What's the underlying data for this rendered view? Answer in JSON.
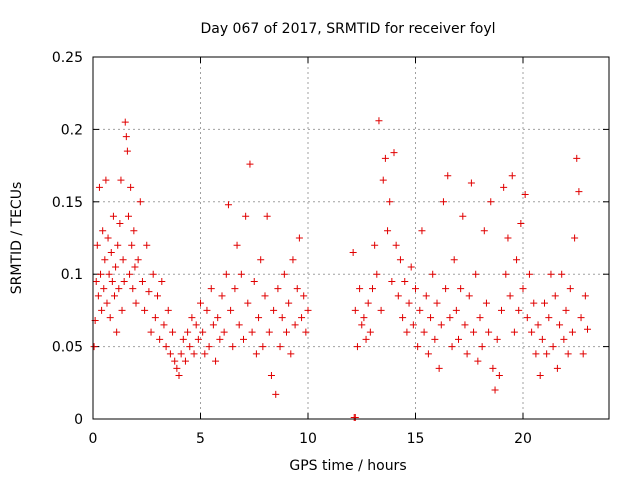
{
  "chart_data": {
    "type": "scatter",
    "title": "Day 067 of 2017, SRMTID for receiver foyl",
    "xlabel": "GPS time / hours",
    "ylabel": "SRMTID / TECUs",
    "xlim": [
      0,
      24
    ],
    "ylim": [
      0,
      0.25
    ],
    "x_ticks": [
      0,
      5,
      10,
      15,
      20
    ],
    "x_tick_labels": [
      "0",
      "5",
      "10",
      "15",
      "20"
    ],
    "y_ticks": [
      0,
      0.05,
      0.1,
      0.15,
      0.2,
      0.25
    ],
    "y_tick_labels": [
      "0",
      "0.05",
      "0.1",
      "0.15",
      "0.2",
      "0.25"
    ],
    "grid": true,
    "marker": "+",
    "color": "#e00000",
    "series": [
      {
        "points": [
          [
            0.05,
            0.05
          ],
          [
            0.1,
            0.068
          ],
          [
            0.15,
            0.095
          ],
          [
            0.2,
            0.12
          ],
          [
            0.25,
            0.085
          ],
          [
            0.3,
            0.16
          ],
          [
            0.35,
            0.1
          ],
          [
            0.4,
            0.075
          ],
          [
            0.45,
            0.13
          ],
          [
            0.5,
            0.09
          ],
          [
            0.55,
            0.11
          ],
          [
            0.6,
            0.165
          ],
          [
            0.65,
            0.08
          ],
          [
            0.7,
            0.125
          ],
          [
            0.75,
            0.1
          ],
          [
            0.8,
            0.07
          ],
          [
            0.85,
            0.115
          ],
          [
            0.9,
            0.095
          ],
          [
            0.95,
            0.14
          ],
          [
            1.0,
            0.085
          ],
          [
            1.05,
            0.105
          ],
          [
            1.1,
            0.06
          ],
          [
            1.15,
            0.12
          ],
          [
            1.2,
            0.09
          ],
          [
            1.25,
            0.135
          ],
          [
            1.3,
            0.165
          ],
          [
            1.35,
            0.075
          ],
          [
            1.4,
            0.11
          ],
          [
            1.45,
            0.095
          ],
          [
            1.5,
            0.205
          ],
          [
            1.55,
            0.195
          ],
          [
            1.6,
            0.185
          ],
          [
            1.65,
            0.14
          ],
          [
            1.7,
            0.1
          ],
          [
            1.75,
            0.16
          ],
          [
            1.8,
            0.12
          ],
          [
            1.85,
            0.09
          ],
          [
            1.9,
            0.13
          ],
          [
            1.95,
            0.105
          ],
          [
            2.0,
            0.08
          ],
          [
            2.1,
            0.11
          ],
          [
            2.2,
            0.15
          ],
          [
            2.3,
            0.095
          ],
          [
            2.4,
            0.075
          ],
          [
            2.5,
            0.12
          ],
          [
            2.6,
            0.088
          ],
          [
            2.7,
            0.06
          ],
          [
            2.8,
            0.1
          ],
          [
            2.9,
            0.07
          ],
          [
            3.0,
            0.085
          ],
          [
            3.1,
            0.055
          ],
          [
            3.2,
            0.095
          ],
          [
            3.3,
            0.065
          ],
          [
            3.4,
            0.05
          ],
          [
            3.5,
            0.075
          ],
          [
            3.6,
            0.045
          ],
          [
            3.7,
            0.06
          ],
          [
            3.8,
            0.04
          ],
          [
            3.9,
            0.035
          ],
          [
            4.0,
            0.03
          ],
          [
            4.1,
            0.045
          ],
          [
            4.2,
            0.055
          ],
          [
            4.3,
            0.04
          ],
          [
            4.4,
            0.06
          ],
          [
            4.5,
            0.05
          ],
          [
            4.6,
            0.07
          ],
          [
            4.7,
            0.045
          ],
          [
            4.8,
            0.065
          ],
          [
            4.9,
            0.055
          ],
          [
            5.0,
            0.08
          ],
          [
            5.1,
            0.06
          ],
          [
            5.2,
            0.045
          ],
          [
            5.3,
            0.075
          ],
          [
            5.4,
            0.05
          ],
          [
            5.5,
            0.09
          ],
          [
            5.6,
            0.065
          ],
          [
            5.7,
            0.04
          ],
          [
            5.8,
            0.07
          ],
          [
            5.9,
            0.055
          ],
          [
            6.0,
            0.085
          ],
          [
            6.1,
            0.06
          ],
          [
            6.2,
            0.1
          ],
          [
            6.3,
            0.148
          ],
          [
            6.4,
            0.075
          ],
          [
            6.5,
            0.05
          ],
          [
            6.6,
            0.09
          ],
          [
            6.7,
            0.12
          ],
          [
            6.8,
            0.065
          ],
          [
            6.9,
            0.1
          ],
          [
            7.0,
            0.055
          ],
          [
            7.1,
            0.14
          ],
          [
            7.2,
            0.08
          ],
          [
            7.3,
            0.176
          ],
          [
            7.4,
            0.06
          ],
          [
            7.5,
            0.095
          ],
          [
            7.6,
            0.045
          ],
          [
            7.7,
            0.07
          ],
          [
            7.8,
            0.11
          ],
          [
            7.9,
            0.05
          ],
          [
            8.0,
            0.085
          ],
          [
            8.1,
            0.14
          ],
          [
            8.2,
            0.06
          ],
          [
            8.3,
            0.03
          ],
          [
            8.4,
            0.075
          ],
          [
            8.5,
            0.017
          ],
          [
            8.6,
            0.09
          ],
          [
            8.7,
            0.05
          ],
          [
            8.8,
            0.07
          ],
          [
            8.9,
            0.1
          ],
          [
            9.0,
            0.06
          ],
          [
            9.1,
            0.08
          ],
          [
            9.2,
            0.045
          ],
          [
            9.3,
            0.11
          ],
          [
            9.4,
            0.065
          ],
          [
            9.5,
            0.09
          ],
          [
            9.6,
            0.125
          ],
          [
            9.7,
            0.07
          ],
          [
            9.8,
            0.085
          ],
          [
            9.9,
            0.06
          ],
          [
            10.0,
            0.075
          ],
          [
            12.1,
            0.115
          ],
          [
            12.2,
            0.075
          ],
          [
            12.3,
            0.05
          ],
          [
            12.4,
            0.09
          ],
          [
            12.5,
            0.065
          ],
          [
            12.6,
            0.07
          ],
          [
            12.7,
            0.055
          ],
          [
            12.8,
            0.08
          ],
          [
            12.9,
            0.06
          ],
          [
            13.0,
            0.09
          ],
          [
            13.1,
            0.12
          ],
          [
            13.2,
            0.1
          ],
          [
            13.3,
            0.206
          ],
          [
            13.4,
            0.075
          ],
          [
            13.5,
            0.165
          ],
          [
            13.6,
            0.18
          ],
          [
            13.7,
            0.13
          ],
          [
            13.8,
            0.15
          ],
          [
            13.9,
            0.095
          ],
          [
            14.0,
            0.184
          ],
          [
            14.1,
            0.12
          ],
          [
            14.2,
            0.085
          ],
          [
            14.3,
            0.11
          ],
          [
            14.4,
            0.07
          ],
          [
            14.5,
            0.095
          ],
          [
            14.6,
            0.06
          ],
          [
            14.7,
            0.08
          ],
          [
            14.8,
            0.105
          ],
          [
            14.9,
            0.065
          ],
          [
            15.0,
            0.09
          ],
          [
            15.1,
            0.05
          ],
          [
            15.2,
            0.075
          ],
          [
            15.3,
            0.13
          ],
          [
            15.4,
            0.06
          ],
          [
            15.5,
            0.085
          ],
          [
            15.6,
            0.045
          ],
          [
            15.7,
            0.07
          ],
          [
            15.8,
            0.1
          ],
          [
            15.9,
            0.055
          ],
          [
            16.0,
            0.08
          ],
          [
            16.1,
            0.035
          ],
          [
            16.2,
            0.065
          ],
          [
            16.3,
            0.15
          ],
          [
            16.4,
            0.09
          ],
          [
            16.5,
            0.168
          ],
          [
            16.6,
            0.07
          ],
          [
            16.7,
            0.05
          ],
          [
            16.8,
            0.11
          ],
          [
            16.9,
            0.075
          ],
          [
            17.0,
            0.055
          ],
          [
            17.1,
            0.09
          ],
          [
            17.2,
            0.14
          ],
          [
            17.3,
            0.065
          ],
          [
            17.4,
            0.045
          ],
          [
            17.5,
            0.085
          ],
          [
            17.6,
            0.163
          ],
          [
            17.7,
            0.06
          ],
          [
            17.8,
            0.1
          ],
          [
            17.9,
            0.04
          ],
          [
            18.0,
            0.07
          ],
          [
            18.1,
            0.05
          ],
          [
            18.2,
            0.13
          ],
          [
            18.3,
            0.08
          ],
          [
            18.4,
            0.06
          ],
          [
            18.5,
            0.15
          ],
          [
            18.6,
            0.035
          ],
          [
            18.7,
            0.02
          ],
          [
            18.8,
            0.055
          ],
          [
            18.9,
            0.03
          ],
          [
            19.0,
            0.075
          ],
          [
            19.1,
            0.16
          ],
          [
            19.2,
            0.1
          ],
          [
            19.3,
            0.125
          ],
          [
            19.4,
            0.085
          ],
          [
            19.5,
            0.168
          ],
          [
            19.6,
            0.06
          ],
          [
            19.7,
            0.11
          ],
          [
            19.8,
            0.075
          ],
          [
            19.9,
            0.135
          ],
          [
            20.0,
            0.09
          ],
          [
            20.1,
            0.155
          ],
          [
            20.2,
            0.07
          ],
          [
            20.3,
            0.1
          ],
          [
            20.4,
            0.06
          ],
          [
            20.5,
            0.08
          ],
          [
            20.6,
            0.045
          ],
          [
            20.7,
            0.065
          ],
          [
            20.8,
            0.03
          ],
          [
            20.9,
            0.055
          ],
          [
            21.0,
            0.08
          ],
          [
            21.1,
            0.045
          ],
          [
            21.2,
            0.07
          ],
          [
            21.3,
            0.1
          ],
          [
            21.4,
            0.05
          ],
          [
            21.5,
            0.085
          ],
          [
            21.6,
            0.035
          ],
          [
            21.7,
            0.065
          ],
          [
            21.8,
            0.1
          ],
          [
            21.9,
            0.055
          ],
          [
            22.0,
            0.075
          ],
          [
            22.1,
            0.045
          ],
          [
            22.2,
            0.09
          ],
          [
            22.3,
            0.06
          ],
          [
            22.4,
            0.125
          ],
          [
            22.5,
            0.18
          ],
          [
            22.6,
            0.157
          ],
          [
            22.7,
            0.07
          ],
          [
            22.8,
            0.045
          ],
          [
            22.9,
            0.085
          ],
          [
            23.0,
            0.062
          ],
          [
            12.15,
            0.001
          ],
          [
            12.2,
            0.001
          ]
        ]
      }
    ]
  }
}
